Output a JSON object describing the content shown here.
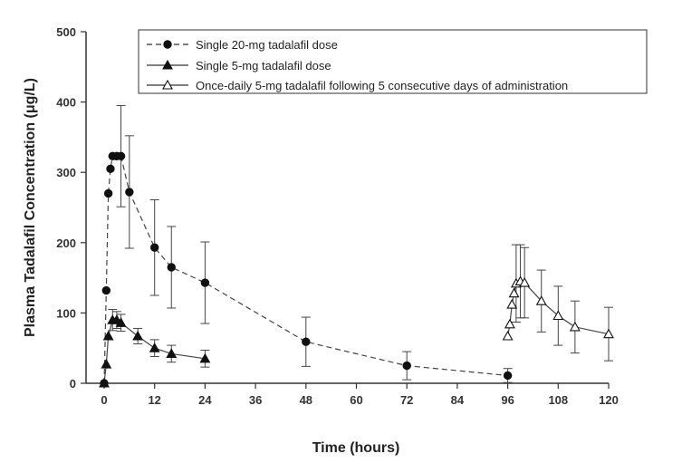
{
  "chart_data": {
    "type": "line",
    "title": "",
    "xlabel": "Time (hours)",
    "ylabel": "Plasma Tadalafil Concentration (μg/L)",
    "xlim": [
      0,
      120
    ],
    "ylim": [
      0,
      500
    ],
    "xticks": [
      "0",
      "12",
      "24",
      "36",
      "48",
      "60",
      "72",
      "84",
      "96",
      "108",
      "120"
    ],
    "xtick_values": [
      0,
      12,
      24,
      36,
      48,
      60,
      72,
      84,
      96,
      108,
      120
    ],
    "yticks": [
      "0",
      "100",
      "200",
      "300",
      "400",
      "500"
    ],
    "ytick_values": [
      0,
      100,
      200,
      300,
      400,
      500
    ],
    "grid": false,
    "legend_position": "top-right",
    "series": [
      {
        "name": "Single 20-mg tadalafil dose",
        "marker": "filled-circle",
        "line_style": "dashed",
        "color": "#222222",
        "x": [
          0,
          0.5,
          1,
          1.5,
          2,
          3,
          4,
          6,
          12,
          16,
          24,
          48,
          72,
          96
        ],
        "y": [
          0,
          132,
          270,
          305,
          323,
          323,
          323,
          272,
          193,
          165,
          143,
          59,
          25,
          11
        ],
        "error": [
          null,
          null,
          null,
          null,
          null,
          null,
          72,
          80,
          68,
          58,
          58,
          35,
          20,
          10
        ]
      },
      {
        "name": "Single 5-mg tadalafil dose",
        "marker": "filled-triangle",
        "line_style": "solid",
        "color": "#222222",
        "x": [
          0,
          0.5,
          1,
          2,
          3,
          4,
          8,
          12,
          16,
          24
        ],
        "y": [
          0,
          27,
          67,
          90,
          90,
          86,
          67,
          50,
          42,
          35
        ],
        "error": [
          null,
          null,
          null,
          15,
          12,
          12,
          11,
          12,
          12,
          12
        ]
      },
      {
        "name": "Once-daily 5-mg tadalafil following 5 consecutive days of administration",
        "marker": "open-triangle",
        "line_style": "solid",
        "color": "#222222",
        "x": [
          96,
          96.5,
          97,
          97.5,
          98,
          99,
          100,
          104,
          108,
          112,
          120
        ],
        "y": [
          67,
          84,
          112,
          128,
          142,
          145,
          143,
          117,
          96,
          80,
          70
        ],
        "error": [
          null,
          null,
          null,
          null,
          55,
          52,
          50,
          44,
          42,
          37,
          38
        ]
      }
    ]
  }
}
